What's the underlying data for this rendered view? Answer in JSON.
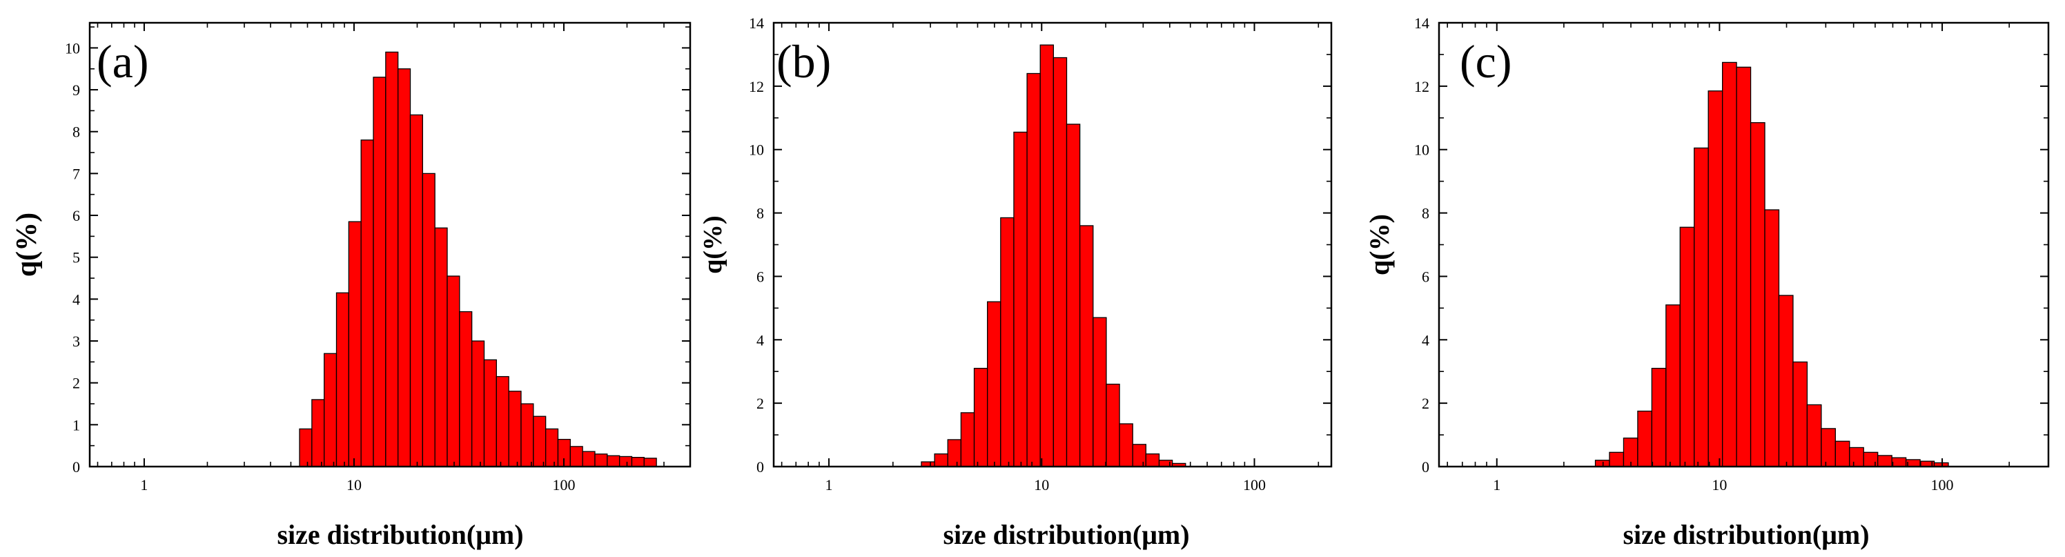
{
  "figure": {
    "panels": [
      "(a)",
      "(b)",
      "(c)"
    ]
  },
  "colors": {
    "bar_fill": "#ff0000",
    "bar_edge": "#000000",
    "axes": "#000000",
    "background": "#ffffff"
  },
  "chart_data": [
    {
      "type": "bar",
      "panel_label": "(a)",
      "xlabel": "size distribution(μm)",
      "ylabel": "q(%)",
      "xscale": "log",
      "xlim": [
        0.55,
        400
      ],
      "ylim": [
        0,
        10.6
      ],
      "xticks_major": [
        1,
        10,
        100
      ],
      "xtick_labels": [
        "1",
        "10",
        "100"
      ],
      "yticks": [
        0,
        1,
        2,
        3,
        4,
        5,
        6,
        7,
        8,
        9,
        10
      ],
      "ytick_labels": [
        "0",
        "1",
        "2",
        "3",
        "4",
        "5",
        "6",
        "7",
        "8",
        "9",
        "10"
      ],
      "grid": false,
      "legend": "none",
      "bin_edges_start": 5.5,
      "bin_ratio": 1.1446,
      "values": [
        0.9,
        1.6,
        2.7,
        4.15,
        5.85,
        7.8,
        9.3,
        9.9,
        9.5,
        8.4,
        7.0,
        5.7,
        4.55,
        3.7,
        3.0,
        2.55,
        2.15,
        1.8,
        1.5,
        1.2,
        0.9,
        0.65,
        0.48,
        0.36,
        0.3,
        0.26,
        0.24,
        0.22,
        0.2
      ]
    },
    {
      "type": "bar",
      "panel_label": "(b)",
      "xlabel": "size distribution(μm)",
      "ylabel": "q(%)",
      "xscale": "log",
      "xlim": [
        0.55,
        230
      ],
      "ylim": [
        0,
        14
      ],
      "xticks_major": [
        1,
        10,
        100
      ],
      "xtick_labels": [
        "1",
        "10",
        "100"
      ],
      "yticks": [
        0,
        2,
        4,
        6,
        8,
        10,
        12,
        14
      ],
      "ytick_labels": [
        "0",
        "2",
        "4",
        "6",
        "8",
        "10",
        "12",
        "14"
      ],
      "grid": false,
      "legend": "none",
      "bin_edges_start": 2.72,
      "bin_ratio": 1.1537,
      "values": [
        0.15,
        0.4,
        0.85,
        1.7,
        3.1,
        5.2,
        7.85,
        10.55,
        12.4,
        13.3,
        12.9,
        10.8,
        7.6,
        4.7,
        2.6,
        1.35,
        0.7,
        0.4,
        0.2,
        0.1
      ]
    },
    {
      "type": "bar",
      "panel_label": "(c)",
      "xlabel": "size distribution(μm)",
      "ylabel": "q(%)",
      "xscale": "log",
      "xlim": [
        0.55,
        300
      ],
      "ylim": [
        0,
        14
      ],
      "xticks_major": [
        1,
        10,
        100
      ],
      "xtick_labels": [
        "1",
        "10",
        "100"
      ],
      "yticks": [
        0,
        2,
        4,
        6,
        8,
        10,
        12,
        14
      ],
      "ytick_labels": [
        "0",
        "2",
        "4",
        "6",
        "8",
        "10",
        "12",
        "14"
      ],
      "grid": false,
      "legend": "none",
      "bin_edges_start": 2.77,
      "bin_ratio": 1.1572,
      "values": [
        0.2,
        0.45,
        0.9,
        1.75,
        3.1,
        5.1,
        7.55,
        10.05,
        11.85,
        12.75,
        12.6,
        10.85,
        8.1,
        5.4,
        3.3,
        1.95,
        1.2,
        0.8,
        0.6,
        0.45,
        0.35,
        0.28,
        0.22,
        0.17,
        0.12
      ]
    }
  ]
}
